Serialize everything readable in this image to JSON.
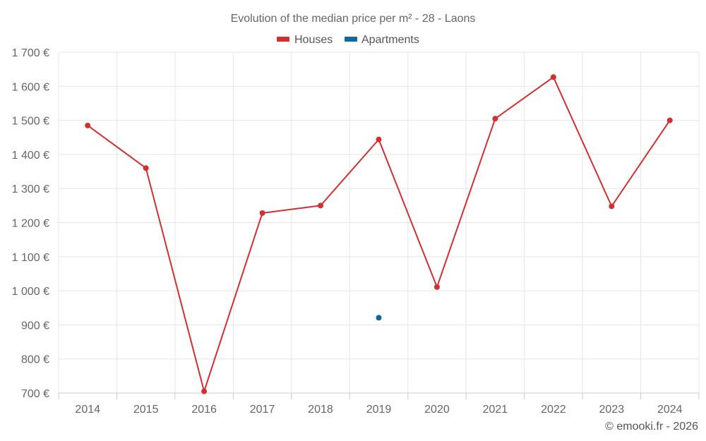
{
  "chart_data": {
    "type": "line",
    "title": "Evolution of the median price per m² - 28 - Laons",
    "categories": [
      "2014",
      "2015",
      "2016",
      "2017",
      "2018",
      "2019",
      "2020",
      "2021",
      "2022",
      "2023",
      "2024"
    ],
    "series": [
      {
        "name": "Houses",
        "color": "#d32f2f",
        "values": [
          1485,
          1360,
          705,
          1228,
          1250,
          1444,
          1011,
          1505,
          1627,
          1248,
          1500
        ]
      },
      {
        "name": "Apartments",
        "color": "#0d6aa1",
        "values": [
          null,
          null,
          null,
          null,
          null,
          921,
          null,
          null,
          null,
          null,
          null
        ]
      }
    ],
    "ylim": [
      700,
      1700
    ],
    "yticks": [
      700,
      800,
      900,
      1000,
      1100,
      1200,
      1300,
      1400,
      1500,
      1600,
      1700
    ],
    "ytick_labels": [
      "700 €",
      "800 €",
      "900 €",
      "1 000 €",
      "1 100 €",
      "1 200 €",
      "1 300 €",
      "1 400 €",
      "1 500 €",
      "1 600 €",
      "1 700 €"
    ],
    "grid": true,
    "legend_position": "top-center",
    "xlabel": "",
    "ylabel": ""
  },
  "credits": "© emooki.fr - 2026"
}
